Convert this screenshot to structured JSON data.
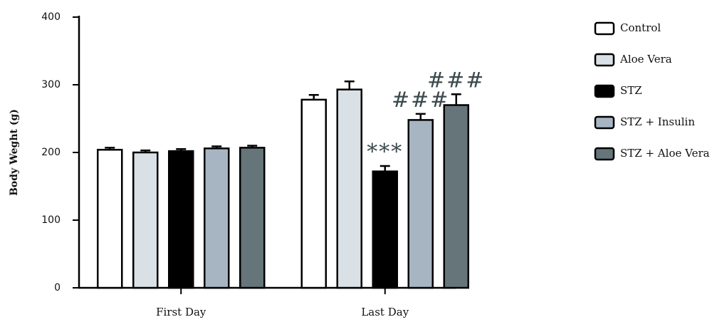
{
  "chart_data": {
    "type": "bar",
    "y_label": "Body Weght (g)",
    "categories": [
      "First Day",
      "Last Day"
    ],
    "ylim": [
      0,
      400
    ],
    "yticks": [
      0,
      100,
      200,
      300,
      400
    ],
    "series": [
      {
        "name": "Control",
        "color": "#ffffff",
        "values": [
          204,
          278
        ],
        "errors": [
          3,
          7
        ]
      },
      {
        "name": "Aloe Vera",
        "color": "#d9e1e6",
        "values": [
          200,
          293
        ],
        "errors": [
          3,
          12
        ]
      },
      {
        "name": "STZ",
        "color": "#000000",
        "values": [
          202,
          172
        ],
        "errors": [
          3,
          8
        ],
        "annotations": [
          null,
          "***"
        ]
      },
      {
        "name": "STZ + Insulin",
        "color": "#a7b5c3",
        "values": [
          206,
          248
        ],
        "errors": [
          3,
          9
        ],
        "annotations": [
          null,
          "###"
        ]
      },
      {
        "name": "STZ + Aloe Vera",
        "color": "#66757a",
        "values": [
          207,
          270
        ],
        "errors": [
          3,
          16
        ],
        "annotations": [
          null,
          "###"
        ]
      }
    ]
  }
}
